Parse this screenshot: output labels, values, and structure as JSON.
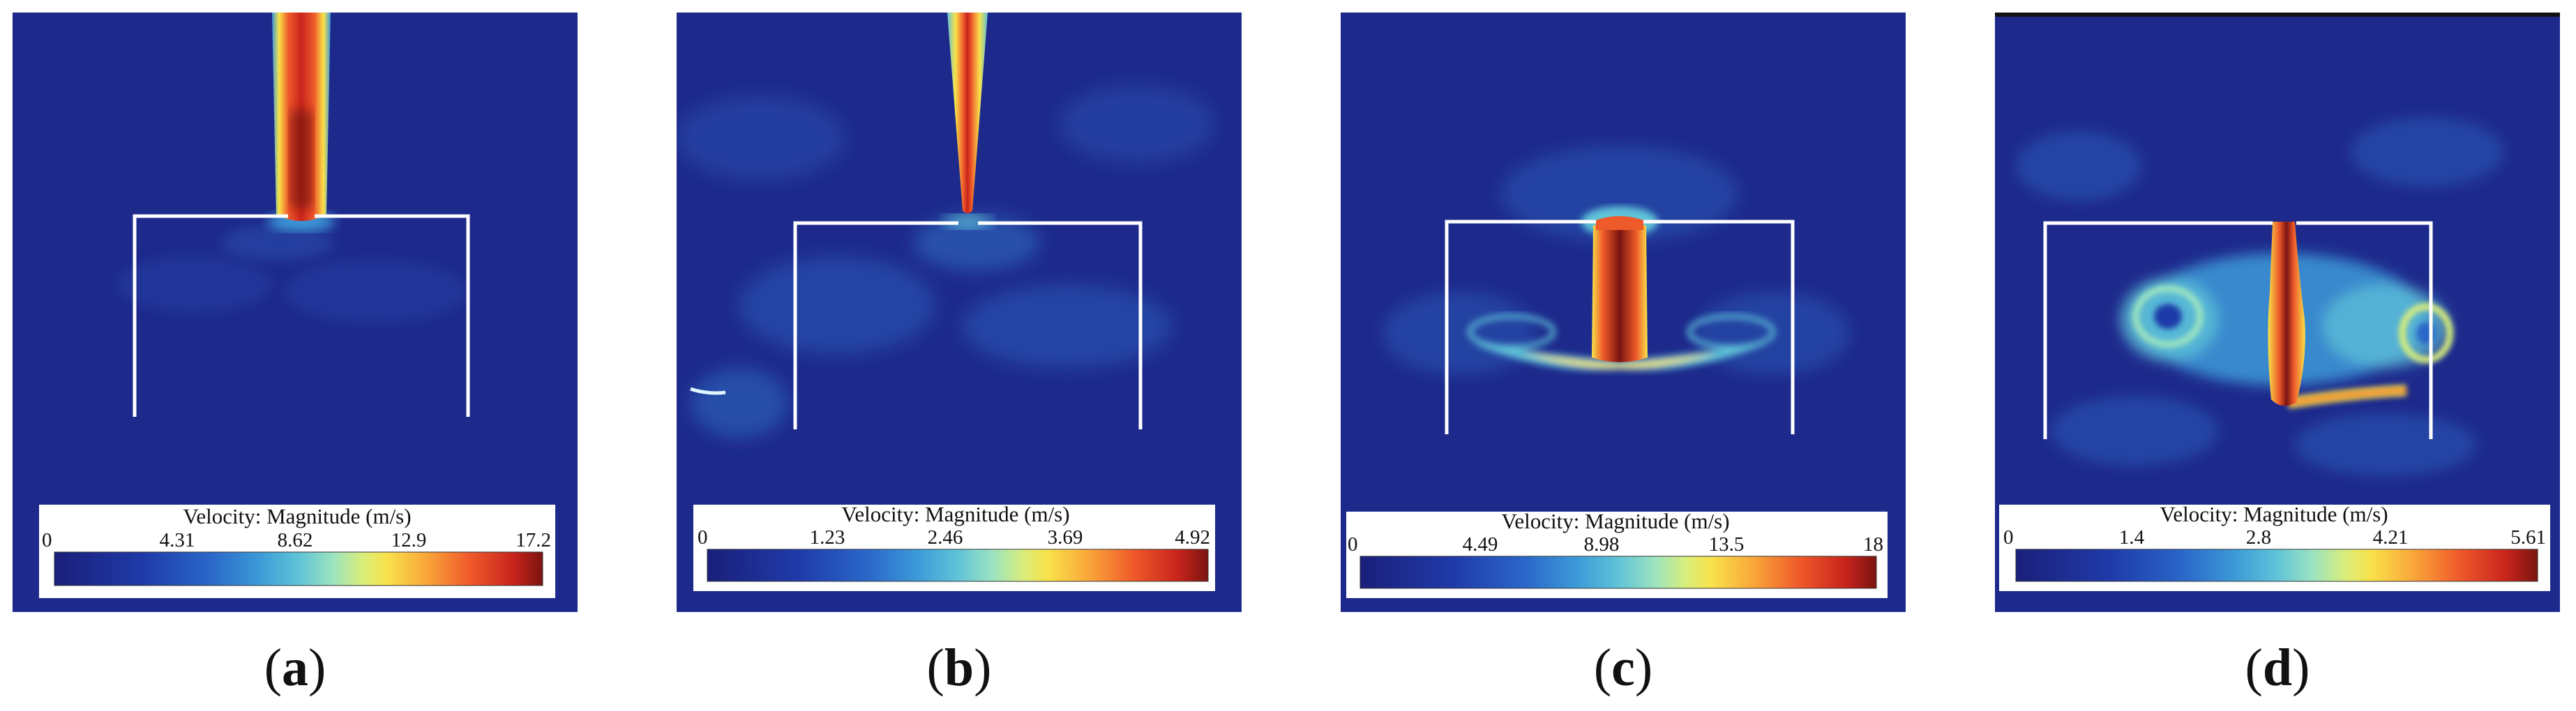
{
  "figure": {
    "panels": [
      {
        "id": "a",
        "caption": "a",
        "colorbar": {
          "title": "Velocity: Magnitude (m/s)",
          "ticks": [
            "0",
            "4.31",
            "8.62",
            "12.9",
            "17.2"
          ],
          "min": 0,
          "max": 17.2
        },
        "flow_pattern": "free jet entering from top, stopping at enclosure opening"
      },
      {
        "id": "b",
        "caption": "b",
        "colorbar": {
          "title": "Velocity: Magnitude (m/s)",
          "ticks": [
            "0",
            "1.23",
            "2.46",
            "3.69",
            "4.92"
          ],
          "min": 0,
          "max": 4.92
        },
        "flow_pattern": "narrow jet from top, weak flow inside enclosure"
      },
      {
        "id": "c",
        "caption": "c",
        "colorbar": {
          "title": "Velocity: Magnitude (m/s)",
          "ticks": [
            "0",
            "4.49",
            "8.98",
            "13.5",
            "18"
          ],
          "min": 0,
          "max": 18
        },
        "flow_pattern": "jet inside enclosure impinging and spreading sideways"
      },
      {
        "id": "d",
        "caption": "d",
        "colorbar": {
          "title": "Velocity: Magnitude (m/s)",
          "ticks": [
            "0",
            "1.4",
            "2.8",
            "4.21",
            "5.61"
          ],
          "min": 0,
          "max": 5.61
        },
        "flow_pattern": "jet inside enclosure with recirculating vortices on both sides"
      }
    ],
    "colors": {
      "background_field": "#1d2a8c",
      "wall": "#ffffff",
      "colormap": [
        "#1a1f7a",
        "#1f3aa8",
        "#2a67c9",
        "#3c9ad8",
        "#5fc3d8",
        "#9be3c0",
        "#d8ee7c",
        "#f8e24a",
        "#f9a83a",
        "#ef5a2a",
        "#c8241c",
        "#7a1410"
      ]
    }
  }
}
